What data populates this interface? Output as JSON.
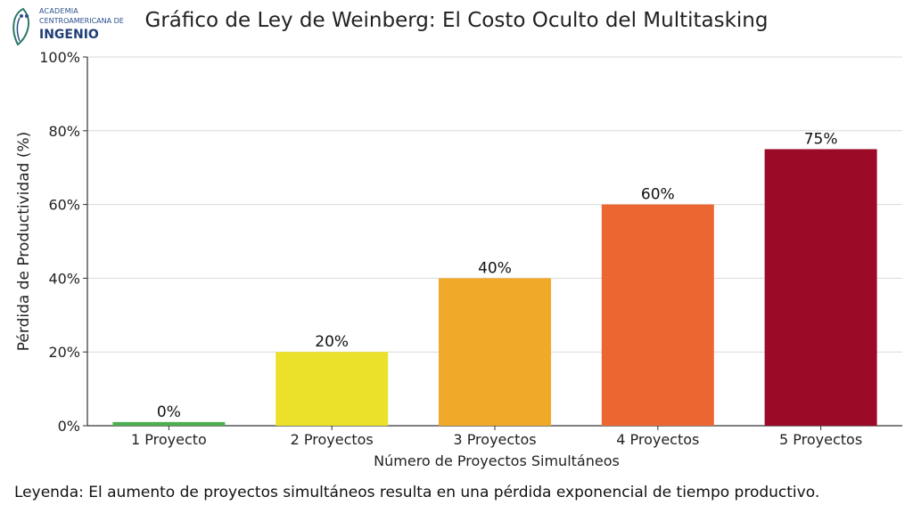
{
  "logo": {
    "line1": "ACADEMIA",
    "line2": "CENTROAMERICANA DE",
    "line3": "INGENIO"
  },
  "chart_data": {
    "type": "bar",
    "title": "Gráfico de Ley de Weinberg: El Costo Oculto del Multitasking",
    "xlabel": "Número de Proyectos Simultáneos",
    "ylabel": "Pérdida de Productividad (%)",
    "categories": [
      "1 Proyecto",
      "2 Proyectos",
      "3 Proyectos",
      "4 Proyectos",
      "5 Proyectos"
    ],
    "values": [
      0,
      20,
      40,
      60,
      75
    ],
    "display_values": [
      1,
      20,
      40,
      60,
      75
    ],
    "data_labels": [
      "0%",
      "20%",
      "40%",
      "60%",
      "75%"
    ],
    "colors": [
      "#4caf50",
      "#ebe12a",
      "#f1a929",
      "#ec6631",
      "#9b0a27"
    ],
    "ylim": [
      0,
      100
    ],
    "yticks": [
      0,
      20,
      40,
      60,
      80,
      100
    ],
    "ytick_labels": [
      "0%",
      "20%",
      "40%",
      "60%",
      "80%",
      "100%"
    ],
    "grid": true
  },
  "legend": {
    "text": "Leyenda: El aumento de proyectos simultáneos resulta en una pérdida exponencial de tiempo productivo."
  }
}
